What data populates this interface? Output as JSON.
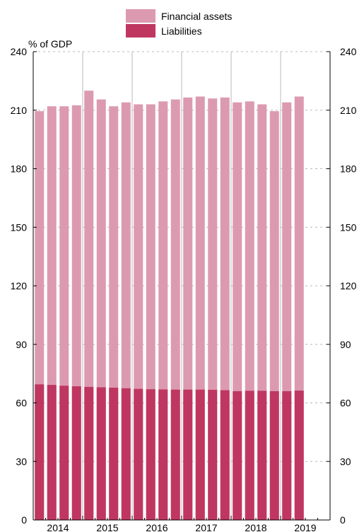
{
  "chart_data": {
    "type": "bar",
    "y_unit_label": "% of GDP",
    "ylim": [
      0,
      240
    ],
    "yticks": [
      0,
      30,
      60,
      90,
      120,
      150,
      180,
      210,
      240
    ],
    "year_labels": [
      "2014",
      "2015",
      "2016",
      "2017",
      "2018",
      "2019"
    ],
    "x_range": [
      2013.625,
      2019.625
    ],
    "legend": {
      "placement": "top-center"
    },
    "grid": {
      "horizontal": "dashed",
      "vertical_year_dividers": true
    },
    "series": [
      {
        "name": "Financial assets",
        "color": "#dc9ab0",
        "x": [
          2013.75,
          2014.0,
          2014.25,
          2014.5,
          2014.75,
          2015.0,
          2015.25,
          2015.5,
          2015.75,
          2016.0,
          2016.25,
          2016.5,
          2016.75,
          2017.0,
          2017.25,
          2017.5,
          2017.75,
          2018.0,
          2018.25,
          2018.5,
          2018.75,
          2019.0
        ],
        "values": [
          209.5,
          212,
          212,
          212.5,
          220,
          215.5,
          212,
          214,
          213,
          213,
          214.5,
          215.5,
          216.5,
          217,
          216,
          216.5,
          214,
          214.5,
          213,
          209.5,
          214,
          217
        ]
      },
      {
        "name": "Liabilities",
        "color": "#bf3761",
        "x": [
          2013.75,
          2014.0,
          2014.25,
          2014.5,
          2014.75,
          2015.0,
          2015.25,
          2015.5,
          2015.75,
          2016.0,
          2016.25,
          2016.5,
          2016.75,
          2017.0,
          2017.25,
          2017.5,
          2017.75,
          2018.0,
          2018.25,
          2018.5,
          2018.75,
          2019.0
        ],
        "values": [
          69.5,
          69.2,
          68.8,
          68.5,
          68.2,
          68.0,
          67.8,
          67.5,
          67.2,
          67.0,
          66.9,
          66.8,
          66.8,
          66.8,
          66.7,
          66.5,
          66.0,
          66.2,
          66.2,
          66.0,
          66.0,
          66.3
        ]
      }
    ]
  }
}
